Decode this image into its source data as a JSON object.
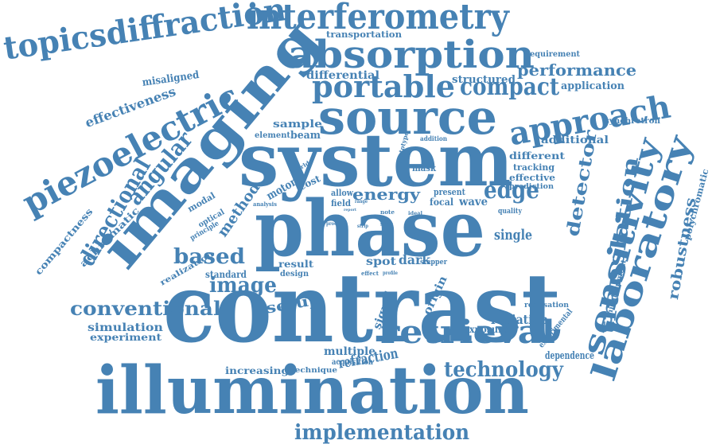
{
  "color": "#4682b4",
  "words": [
    {
      "text": "contrast"
    },
    {
      "text": "phase"
    },
    {
      "text": "system"
    },
    {
      "text": "illumination"
    },
    {
      "text": "imaging"
    },
    {
      "text": "source"
    },
    {
      "text": "absorption"
    },
    {
      "text": "interferometry"
    },
    {
      "text": "topicsdiffraction"
    },
    {
      "text": "piezoelectric"
    },
    {
      "text": "portable"
    },
    {
      "text": "approach"
    },
    {
      "text": "laboratory"
    },
    {
      "text": "sensitivity"
    },
    {
      "text": "retrieval"
    },
    {
      "text": "translation"
    },
    {
      "text": "technology"
    },
    {
      "text": "implementation"
    },
    {
      "text": "conventional"
    },
    {
      "text": "directional"
    },
    {
      "text": "angular"
    },
    {
      "text": "edge"
    },
    {
      "text": "compact"
    },
    {
      "text": "energy"
    },
    {
      "text": "based"
    },
    {
      "text": "image"
    },
    {
      "text": "performance"
    },
    {
      "text": "detector"
    },
    {
      "text": "robustness"
    },
    {
      "text": "effectiveness"
    },
    {
      "text": "differential"
    },
    {
      "text": "structured"
    },
    {
      "text": "transportation"
    },
    {
      "text": "requirement"
    },
    {
      "text": "application"
    },
    {
      "text": "misaligned"
    },
    {
      "text": "synchrotron"
    },
    {
      "text": "additional"
    },
    {
      "text": "different"
    },
    {
      "text": "tracking"
    },
    {
      "text": "effective"
    },
    {
      "text": "prediction"
    },
    {
      "text": "sample"
    },
    {
      "text": "element"
    },
    {
      "text": "beam"
    },
    {
      "text": "addition"
    },
    {
      "text": "prototype"
    },
    {
      "text": "mask"
    },
    {
      "text": "motor"
    },
    {
      "text": "cost"
    },
    {
      "text": "world"
    },
    {
      "text": "method"
    },
    {
      "text": "modal"
    },
    {
      "text": "optical"
    },
    {
      "text": "principle"
    },
    {
      "text": "achromatic"
    },
    {
      "text": "compactness"
    },
    {
      "text": "realization"
    },
    {
      "text": "standard"
    },
    {
      "text": "setup"
    },
    {
      "text": "result"
    },
    {
      "text": "design"
    },
    {
      "text": "spot"
    },
    {
      "text": "dark"
    },
    {
      "text": "stepper"
    },
    {
      "text": "effect"
    },
    {
      "text": "profile"
    },
    {
      "text": "allow"
    },
    {
      "text": "field"
    },
    {
      "text": "present"
    },
    {
      "text": "focal"
    },
    {
      "text": "wave"
    },
    {
      "text": "quality"
    },
    {
      "text": "ideal"
    },
    {
      "text": "note"
    },
    {
      "text": "shot"
    },
    {
      "text": "order"
    },
    {
      "text": "single"
    },
    {
      "text": "polychromatic"
    },
    {
      "text": "misalignment"
    },
    {
      "text": "realisation"
    },
    {
      "text": "experimental"
    },
    {
      "text": "radiation"
    },
    {
      "text": "exposure"
    },
    {
      "text": "dependence"
    },
    {
      "text": "origin"
    },
    {
      "text": "signal"
    },
    {
      "text": "simulation"
    },
    {
      "text": "experiment"
    },
    {
      "text": "multiple"
    },
    {
      "text": "acquisition"
    },
    {
      "text": "refraction"
    },
    {
      "text": "increasing"
    },
    {
      "text": "technique"
    },
    {
      "text": "analysis"
    },
    {
      "text": "strip"
    },
    {
      "text": "range"
    },
    {
      "text": "proof"
    },
    {
      "text": "report"
    }
  ]
}
